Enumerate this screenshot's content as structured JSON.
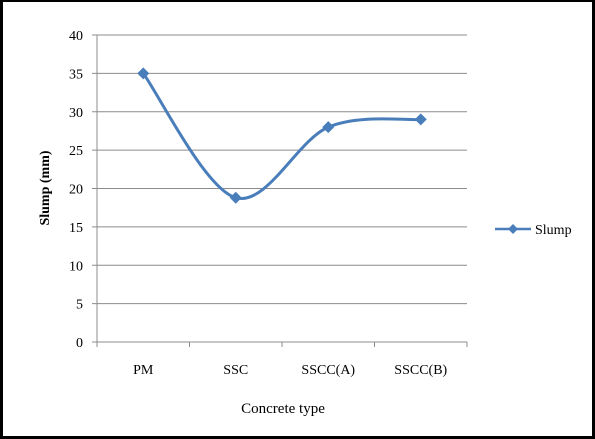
{
  "chart_data": {
    "type": "line",
    "title": "",
    "xlabel": "Concrete type",
    "ylabel": "Slump (mm)",
    "categories": [
      "PM",
      "SSC",
      "SSCC(A)",
      "SSCC(B)"
    ],
    "ylim": [
      0,
      40
    ],
    "yticks": [
      0,
      5,
      10,
      15,
      20,
      25,
      30,
      35,
      40
    ],
    "grid": true,
    "smooth": true,
    "legend_position": "right",
    "series": [
      {
        "name": "Slump",
        "values": [
          35,
          18.8,
          28,
          29
        ],
        "color": "#4a7ebb",
        "marker": "diamond"
      }
    ]
  }
}
